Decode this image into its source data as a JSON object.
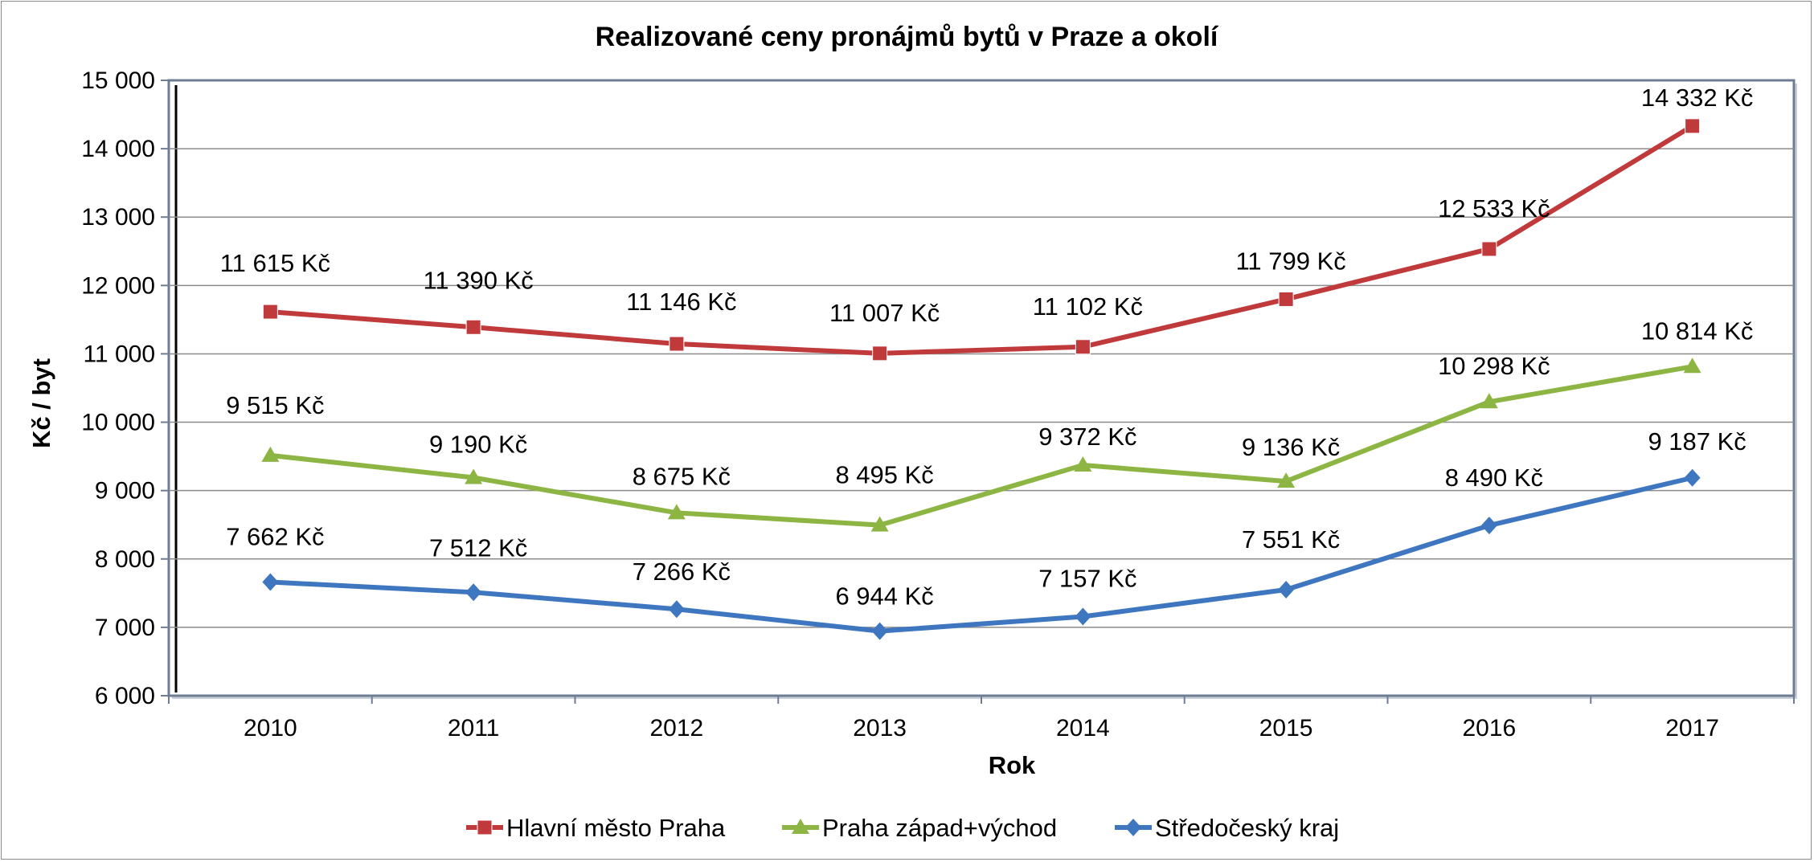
{
  "chart_data": {
    "type": "line",
    "title": "Realizované ceny pronájmů bytů v Praze a okolí",
    "xlabel": "Rok",
    "ylabel": "Kč / byt",
    "categories": [
      "2010",
      "2011",
      "2012",
      "2013",
      "2014",
      "2015",
      "2016",
      "2017"
    ],
    "ylim": [
      6000,
      15000
    ],
    "ytick_step": 1000,
    "ytick_labels": [
      "6 000",
      "7 000",
      "8 000",
      "9 000",
      "10 000",
      "11 000",
      "12 000",
      "13 000",
      "14 000",
      "15 000"
    ],
    "grid": true,
    "legend_position": "bottom",
    "series": [
      {
        "name": "Hlavní město Praha",
        "color": "#c0393b",
        "marker": "square",
        "values": [
          11615,
          11390,
          11146,
          11007,
          11102,
          11799,
          12533,
          14332
        ],
        "labels": [
          "11 615 Kč",
          "11 390 Kč",
          "11 146 Kč",
          "11 007 Kč",
          "11 102 Kč",
          "11 799 Kč",
          "12 533 Kč",
          "14 332 Kč"
        ]
      },
      {
        "name": "Praha západ+východ",
        "color": "#8db543",
        "marker": "triangle",
        "values": [
          9515,
          9190,
          8675,
          8495,
          9372,
          9136,
          10298,
          10814
        ],
        "labels": [
          "9 515 Kč",
          "9 190 Kč",
          "8 675 Kč",
          "8 495 Kč",
          "9 372 Kč",
          "9 136 Kč",
          "10 298 Kč",
          "10 814 Kč"
        ]
      },
      {
        "name": "Středočeský kraj",
        "color": "#3e77c0",
        "marker": "diamond",
        "values": [
          7662,
          7512,
          7266,
          6944,
          7157,
          7551,
          8490,
          9187
        ],
        "labels": [
          "7 662 Kč",
          "7 512 Kč",
          "7 266 Kč",
          "6 944 Kč",
          "7 157 Kč",
          "7 551 Kč",
          "8 490 Kč",
          "9 187 Kč"
        ]
      }
    ]
  }
}
